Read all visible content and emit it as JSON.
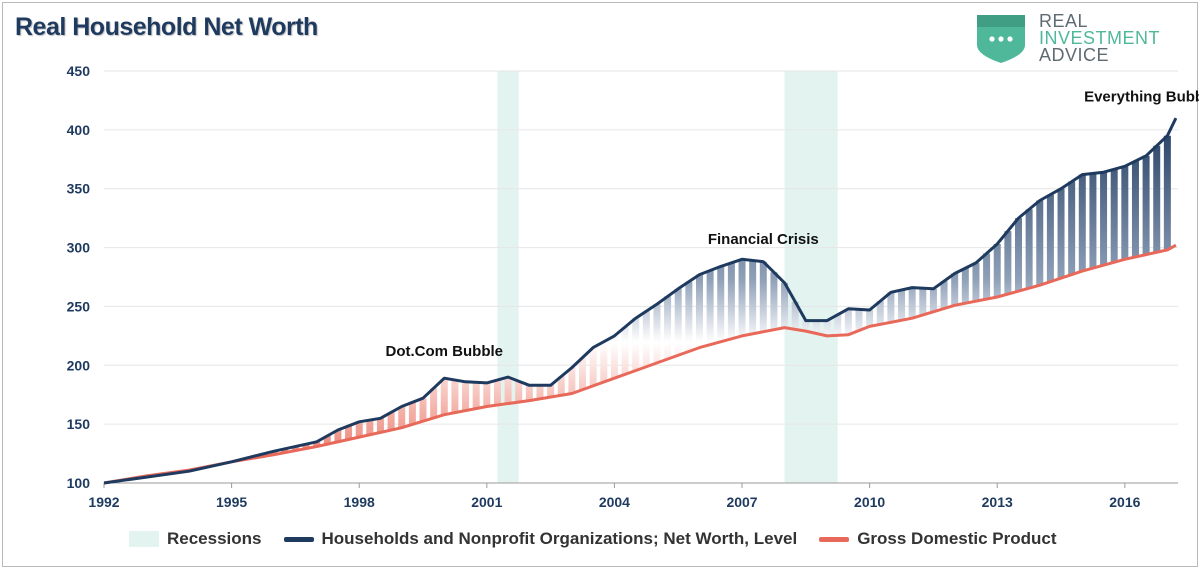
{
  "title": "Real Household Net Worth",
  "logo": {
    "line1": "REAL",
    "line2": "INVESTMENT",
    "line3": "ADVICE",
    "icon": "shield-icon"
  },
  "colors": {
    "networth": "#1f3a5f",
    "gdp": "#e8695a",
    "recession": "#e3f4f0",
    "grid": "#e6e6e6",
    "axis_text": "#1f3a5f"
  },
  "legend": {
    "recessions": "Recessions",
    "networth": "Households and Nonprofit Organizations; Net Worth, Level",
    "gdp": "Gross Domestic Product"
  },
  "chart_data": {
    "type": "area",
    "title": "Real Household Net Worth",
    "xlabel": "",
    "ylabel": "",
    "xlim": [
      1992,
      2017.25
    ],
    "ylim": [
      100,
      450
    ],
    "y_ticks": [
      100,
      150,
      200,
      250,
      300,
      350,
      400,
      450
    ],
    "x_ticks": [
      1992,
      1995,
      1998,
      2001,
      2004,
      2007,
      2010,
      2013,
      2016
    ],
    "grid": true,
    "recessions": [
      [
        2001.25,
        2001.75
      ],
      [
        2008.0,
        2009.25
      ]
    ],
    "annotations": [
      {
        "text": "Dot.Com Bubble",
        "x": 2000.0,
        "y": 208
      },
      {
        "text": "Financial Crisis",
        "x": 2007.5,
        "y": 303
      },
      {
        "text": "Everything Bubble",
        "x": 2016.6,
        "y": 424
      }
    ],
    "series": [
      {
        "name": "Households and Nonprofit Organizations; Net Worth, Level",
        "x": [
          1992,
          1993,
          1994,
          1995,
          1996,
          1997,
          1997.5,
          1998,
          1998.5,
          1999,
          1999.5,
          2000,
          2000.5,
          2001,
          2001.5,
          2002,
          2002.5,
          2003,
          2003.5,
          2004,
          2004.5,
          2005,
          2005.5,
          2006,
          2006.5,
          2007,
          2007.5,
          2008,
          2008.5,
          2009,
          2009.5,
          2010,
          2010.5,
          2011,
          2011.5,
          2012,
          2012.5,
          2013,
          2013.5,
          2014,
          2014.5,
          2015,
          2015.5,
          2016,
          2016.5,
          2017,
          2017.2
        ],
        "values": [
          100,
          105,
          110,
          118,
          127,
          135,
          145,
          152,
          155,
          165,
          172,
          189,
          186,
          185,
          190,
          183,
          183,
          198,
          215,
          225,
          240,
          252,
          265,
          277,
          284,
          290,
          288,
          270,
          238,
          238,
          248,
          247,
          262,
          266,
          265,
          278,
          287,
          303,
          325,
          340,
          350,
          362,
          364,
          369,
          378,
          395,
          410
        ]
      },
      {
        "name": "Gross Domestic Product",
        "x": [
          1992,
          1993,
          1994,
          1995,
          1996,
          1997,
          1998,
          1999,
          2000,
          2001,
          2002,
          2003,
          2004,
          2005,
          2006,
          2007,
          2008,
          2008.5,
          2009,
          2009.5,
          2010,
          2011,
          2012,
          2013,
          2014,
          2015,
          2016,
          2017,
          2017.2
        ],
        "values": [
          100,
          106,
          111,
          118,
          124,
          131,
          139,
          147,
          158,
          165,
          170,
          176,
          189,
          202,
          215,
          225,
          232,
          229,
          225,
          226,
          233,
          240,
          251,
          258,
          268,
          280,
          290,
          298,
          302
        ]
      }
    ]
  }
}
